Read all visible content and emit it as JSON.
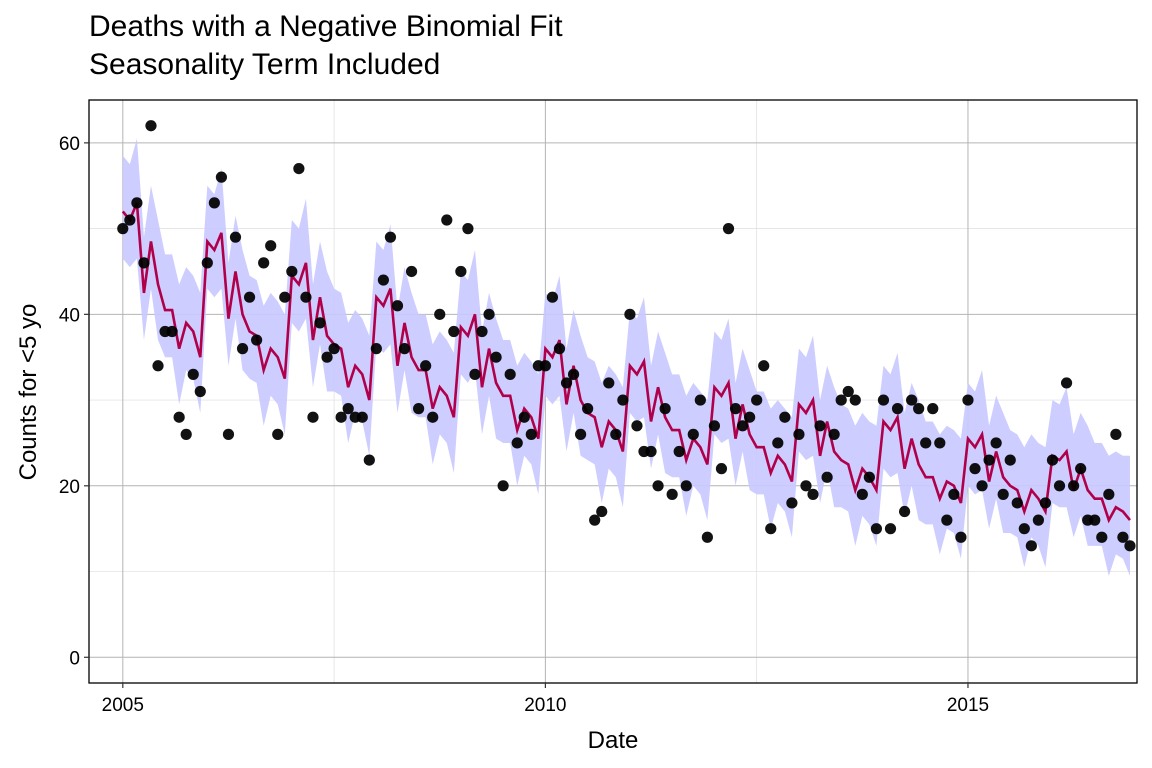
{
  "chart_data": {
    "type": "line",
    "title": "Deaths with a Negative Binomial Fit",
    "subtitle": "Seasonality Term Included",
    "xlabel": "Date",
    "ylabel": "Counts for <5 yo",
    "xlim": [
      2004.6,
      2017.0
    ],
    "ylim": [
      -3,
      65
    ],
    "x_ticks": [
      2005,
      2010,
      2015
    ],
    "x_tick_labels": [
      "2005",
      "2010",
      "2015"
    ],
    "y_ticks": [
      0,
      20,
      40,
      60
    ],
    "y_tick_labels": [
      "0",
      "20",
      "40",
      "60"
    ],
    "grid": true,
    "legend": "none",
    "colors": {
      "points": "#000000",
      "fit_line": "#b0004a",
      "ribbon": "#c8c8ff"
    },
    "x_start": 2005.0,
    "x_step_months": 1,
    "series": [
      {
        "name": "Observed deaths",
        "kind": "points",
        "values": [
          50,
          51,
          53,
          46,
          62,
          34,
          38,
          38,
          28,
          26,
          33,
          31,
          46,
          53,
          56,
          26,
          49,
          36,
          42,
          37,
          46,
          48,
          26,
          42,
          45,
          57,
          42,
          28,
          39,
          35,
          36,
          28,
          29,
          28,
          28,
          23,
          36,
          44,
          49,
          41,
          36,
          45,
          29,
          34,
          28,
          40,
          51,
          38,
          45,
          50,
          33,
          38,
          40,
          35,
          20,
          33,
          25,
          28,
          26,
          34,
          34,
          42,
          36,
          32,
          33,
          26,
          29,
          16,
          17,
          32,
          26,
          30,
          40,
          27,
          24,
          24,
          20,
          29,
          19,
          24,
          20,
          26,
          30,
          14,
          27,
          22,
          50,
          29,
          27,
          28,
          30,
          34,
          15,
          25,
          28,
          18,
          26,
          20,
          19,
          27,
          21,
          26,
          30,
          31,
          30,
          19,
          21,
          15,
          30,
          15,
          29,
          17,
          30,
          29,
          25,
          29,
          25,
          16,
          19,
          14,
          30,
          22,
          20,
          23,
          25,
          19,
          23,
          18,
          15,
          13,
          16,
          18,
          23,
          20,
          32,
          20,
          22,
          16,
          16,
          14,
          19,
          26,
          14,
          13
        ]
      },
      {
        "name": "Negative binomial fit",
        "kind": "line",
        "values": [
          52,
          51,
          53,
          42.5,
          48.5,
          43.5,
          40.5,
          40.5,
          36,
          39,
          38,
          35,
          48.5,
          47.5,
          49.5,
          39.5,
          45,
          40,
          38,
          37.5,
          33.5,
          36,
          35,
          32.5,
          44.5,
          43.5,
          46,
          37,
          42,
          37.5,
          36.5,
          36,
          31.5,
          34,
          33,
          30,
          42,
          41,
          43,
          34,
          39,
          35,
          33.5,
          33.5,
          29,
          31.5,
          30.5,
          28,
          38.5,
          37.5,
          40,
          31.5,
          36,
          32,
          30.5,
          30.5,
          26.5,
          29,
          28,
          25.5,
          36,
          35,
          37,
          29.5,
          34,
          30,
          28.5,
          28,
          24.5,
          27.5,
          26.5,
          24,
          34,
          33,
          34.5,
          27.5,
          31.5,
          28,
          26.5,
          26.5,
          23,
          25.5,
          24.5,
          22.5,
          31.5,
          30.5,
          32,
          25.5,
          29.5,
          26,
          24.5,
          24.5,
          21.5,
          23.5,
          22.5,
          20.5,
          29.5,
          28.5,
          30,
          23.5,
          27.5,
          24,
          23,
          22.5,
          19.5,
          22,
          21,
          19.5,
          27.5,
          26.5,
          28,
          22,
          25.5,
          22.5,
          21,
          21,
          18.5,
          20.5,
          20,
          18,
          25.5,
          24.5,
          26,
          20.5,
          24,
          21,
          20,
          19.5,
          17,
          19.5,
          18.5,
          17,
          23.5,
          23,
          24,
          19.5,
          22,
          19.5,
          18.5,
          18.5,
          16,
          17.5,
          17,
          16
        ]
      },
      {
        "name": "Fit interval",
        "kind": "ribbon",
        "lower_offset": -5.5,
        "upper_offset": 6.5
      }
    ]
  }
}
